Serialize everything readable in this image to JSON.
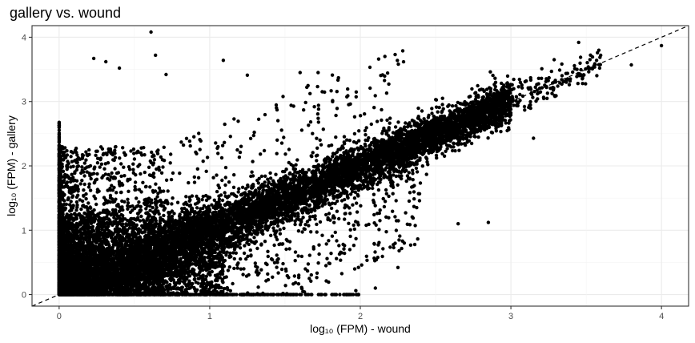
{
  "chart_data": {
    "type": "scatter",
    "title": "gallery vs. wound",
    "xlabel": "log₁₀ (FPM) - wound",
    "ylabel": "log₁₀ (FPM) - gallery",
    "xlim": [
      -0.18,
      4.18
    ],
    "ylim": [
      -0.18,
      4.18
    ],
    "xticks": [
      "0",
      "1",
      "2",
      "3",
      "4"
    ],
    "yticks": [
      "0",
      "1",
      "2",
      "3",
      "4"
    ],
    "grid": true,
    "reference_line": {
      "type": "identity",
      "style": "dashed"
    },
    "point_color": "#000000",
    "highlighted_points": [
      {
        "x": 0.61,
        "y": 4.08
      },
      {
        "x": 3.45,
        "y": 3.92
      },
      {
        "x": 4.0,
        "y": 3.87
      },
      {
        "x": 3.8,
        "y": 3.57
      },
      {
        "x": 0.64,
        "y": 3.72
      },
      {
        "x": 1.09,
        "y": 3.64
      },
      {
        "x": 0.23,
        "y": 3.67
      },
      {
        "x": 0.31,
        "y": 3.62
      },
      {
        "x": 0.4,
        "y": 3.52
      },
      {
        "x": 0.71,
        "y": 3.42
      },
      {
        "x": 1.25,
        "y": 3.41
      },
      {
        "x": 1.6,
        "y": 3.45
      },
      {
        "x": 1.72,
        "y": 3.45
      },
      {
        "x": 3.3,
        "y": 3.09
      },
      {
        "x": 3.15,
        "y": 2.43
      },
      {
        "x": 2.85,
        "y": 1.12
      },
      {
        "x": 2.65,
        "y": 1.1
      },
      {
        "x": 2.1,
        "y": 0.1
      },
      {
        "x": 1.97,
        "y": 0.06
      },
      {
        "x": 2.25,
        "y": 0.42
      }
    ],
    "note": "dense cloud of many thousands of points concentrated along the diagonal, heaviest near 0-2"
  }
}
